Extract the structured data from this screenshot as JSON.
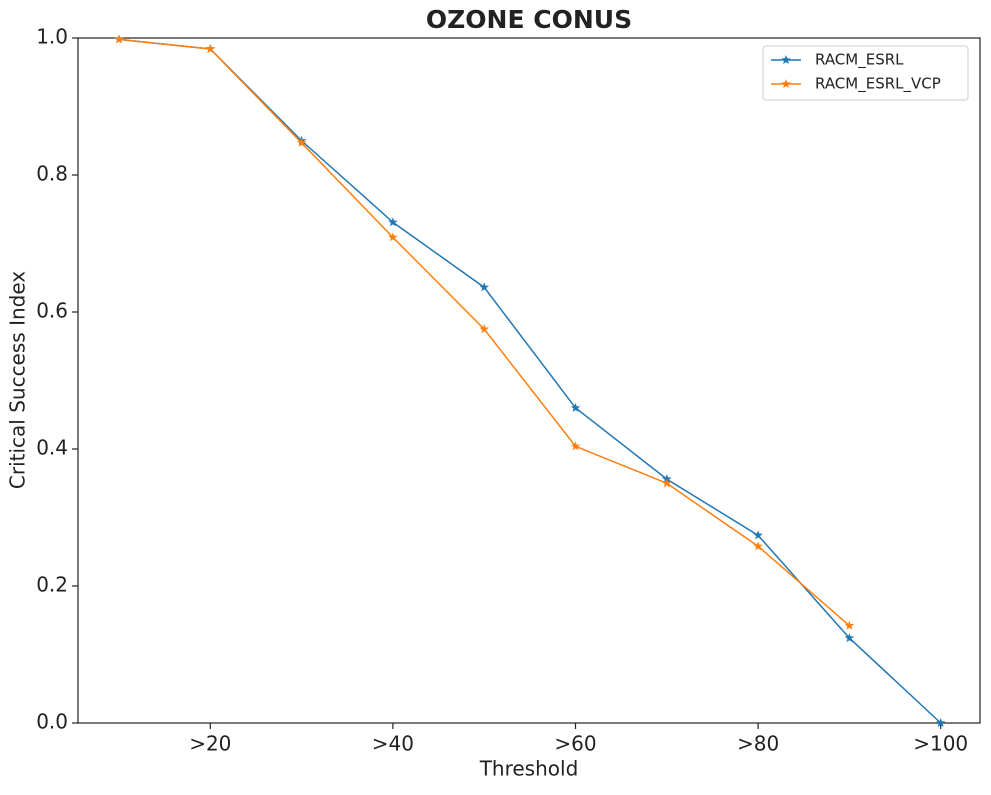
{
  "chart_data": {
    "type": "line",
    "title": "OZONE CONUS",
    "x_label": "Threshold",
    "y_label": "Critical Success Index",
    "categories": [
      null,
      ">20",
      null,
      ">40",
      null,
      ">60",
      null,
      ">80",
      null,
      ">100"
    ],
    "series": [
      {
        "name": "RACM_ESRL",
        "color": "#1f77b4",
        "values": [
          0.998,
          0.984,
          0.85,
          0.731,
          0.636,
          0.46,
          0.356,
          0.274,
          0.124,
          0.0
        ]
      },
      {
        "name": "RACM_ESRL_VCP",
        "color": "#ff7f0e",
        "values": [
          0.998,
          0.984,
          0.847,
          0.709,
          0.575,
          0.404,
          0.35,
          0.258,
          0.142,
          null
        ]
      }
    ],
    "ylim": [
      0,
      1
    ],
    "yticks": [
      {
        "value": 0,
        "label": "0.0"
      },
      0.2,
      0.4,
      0.6,
      0.8,
      {
        "value": 1,
        "label": "1.0"
      }
    ],
    "legend": "upper right",
    "marker": "star"
  }
}
